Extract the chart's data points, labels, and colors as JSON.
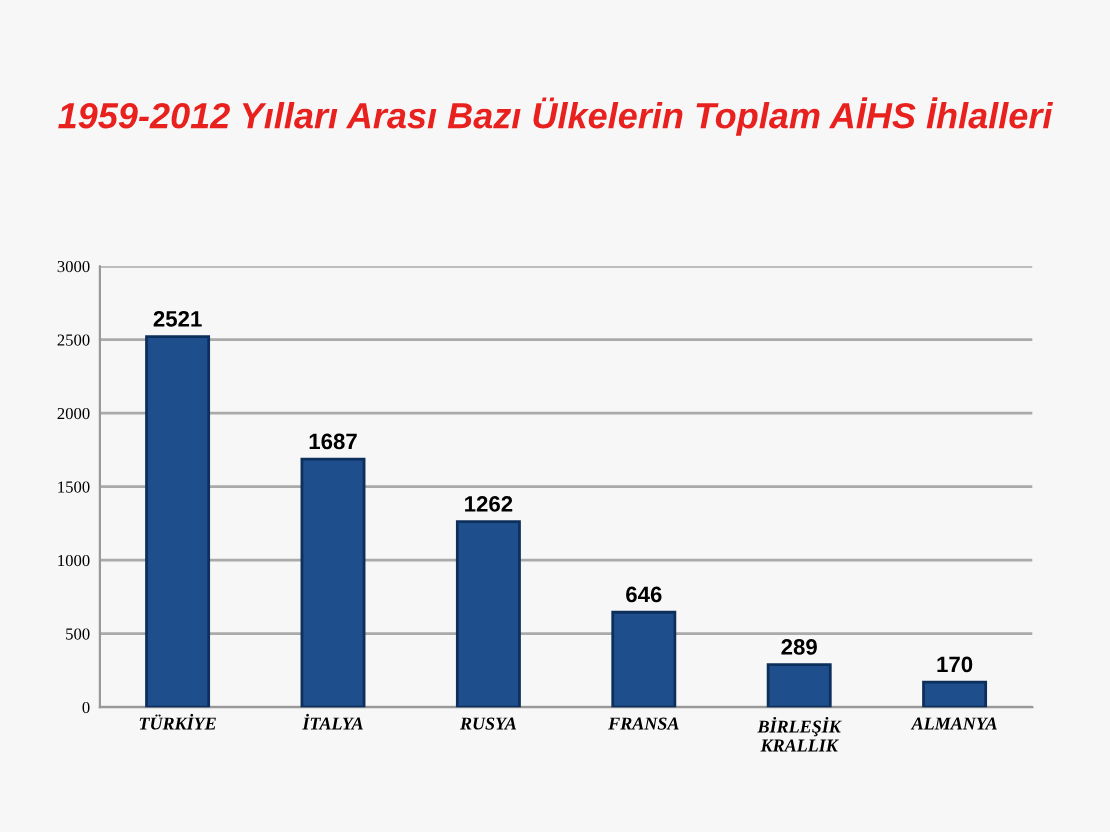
{
  "chart_data": {
    "type": "bar",
    "title": "1959-2012 Yılları Arası Bazı Ülkelerin Toplam AİHS İhlalleri",
    "categories": [
      "TÜRKİYE",
      "İTALYA",
      "RUSYA",
      "FRANSA",
      "BİRLEŞİK\nKRALLIK",
      "ALMANYA"
    ],
    "values": [
      2521,
      1687,
      1262,
      646,
      289,
      170
    ],
    "color": "#1f4e8c",
    "ylim": [
      0,
      3000
    ],
    "yticks": [
      0,
      500,
      1000,
      1500,
      2000,
      2500,
      3000
    ],
    "grid": "y",
    "data_labels": true
  }
}
